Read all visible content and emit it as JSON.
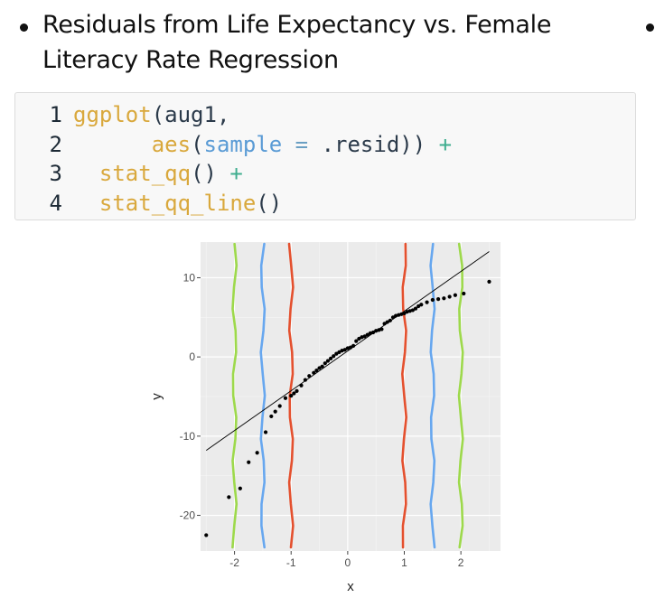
{
  "bullet": {
    "text": "Residuals from Life Expectancy vs. Female Literacy Rate Regression"
  },
  "code": {
    "lines": [
      {
        "num": "1",
        "parts": [
          [
            "fn",
            "ggplot"
          ],
          [
            "punct",
            "("
          ],
          [
            "var",
            "aug1"
          ],
          [
            "punct",
            ","
          ]
        ]
      },
      {
        "num": "2",
        "parts": [
          [
            "punct",
            "      "
          ],
          [
            "fn",
            "aes"
          ],
          [
            "punct",
            "("
          ],
          [
            "arg",
            "sample"
          ],
          [
            "op",
            " = "
          ],
          [
            "var",
            ".resid"
          ],
          [
            "punct",
            "))"
          ],
          [
            "plus",
            " +"
          ]
        ]
      },
      {
        "num": "3",
        "parts": [
          [
            "punct",
            "  "
          ],
          [
            "fn",
            "stat_qq"
          ],
          [
            "punct",
            "()"
          ],
          [
            "plus",
            " +"
          ]
        ]
      },
      {
        "num": "4",
        "parts": [
          [
            "punct",
            "  "
          ],
          [
            "fn",
            "stat_qq_line"
          ],
          [
            "punct",
            "()"
          ]
        ]
      }
    ]
  },
  "chart_data": {
    "type": "scatter",
    "xlabel": "x",
    "ylabel": "y",
    "xlim": [
      -2.6,
      2.7
    ],
    "ylim": [
      -24.5,
      14.5
    ],
    "xticks": [
      -2,
      -1,
      0,
      1,
      2
    ],
    "yticks": [
      -20,
      -10,
      0,
      10
    ],
    "grid": true,
    "points": [
      [
        -2.5,
        -22.5
      ],
      [
        -2.1,
        -17.7
      ],
      [
        -1.9,
        -16.6
      ],
      [
        -1.75,
        -13.3
      ],
      [
        -1.6,
        -12.1
      ],
      [
        -1.45,
        -9.5
      ],
      [
        -1.35,
        -7.5
      ],
      [
        -1.28,
        -6.9
      ],
      [
        -1.2,
        -6.2
      ],
      [
        -1.1,
        -5.2
      ],
      [
        -1.0,
        -4.9
      ],
      [
        -0.95,
        -4.6
      ],
      [
        -0.9,
        -4.3
      ],
      [
        -0.82,
        -3.6
      ],
      [
        -0.75,
        -2.9
      ],
      [
        -0.68,
        -2.4
      ],
      [
        -0.6,
        -2.0
      ],
      [
        -0.55,
        -1.7
      ],
      [
        -0.5,
        -1.4
      ],
      [
        -0.45,
        -1.2
      ],
      [
        -0.4,
        -0.8
      ],
      [
        -0.35,
        -0.5
      ],
      [
        -0.3,
        -0.2
      ],
      [
        -0.25,
        0.1
      ],
      [
        -0.2,
        0.4
      ],
      [
        -0.15,
        0.6
      ],
      [
        -0.1,
        0.8
      ],
      [
        -0.05,
        0.9
      ],
      [
        0.0,
        1.1
      ],
      [
        0.05,
        1.2
      ],
      [
        0.1,
        1.4
      ],
      [
        0.15,
        2.0
      ],
      [
        0.2,
        2.3
      ],
      [
        0.25,
        2.5
      ],
      [
        0.3,
        2.6
      ],
      [
        0.35,
        2.8
      ],
      [
        0.4,
        3.0
      ],
      [
        0.45,
        3.1
      ],
      [
        0.5,
        3.3
      ],
      [
        0.55,
        3.4
      ],
      [
        0.6,
        3.5
      ],
      [
        0.65,
        4.2
      ],
      [
        0.7,
        4.4
      ],
      [
        0.75,
        4.6
      ],
      [
        0.8,
        5.0
      ],
      [
        0.85,
        5.2
      ],
      [
        0.9,
        5.3
      ],
      [
        0.95,
        5.4
      ],
      [
        1.0,
        5.5
      ],
      [
        1.05,
        5.7
      ],
      [
        1.1,
        5.8
      ],
      [
        1.15,
        5.9
      ],
      [
        1.2,
        6.1
      ],
      [
        1.25,
        6.4
      ],
      [
        1.3,
        6.6
      ],
      [
        1.4,
        6.9
      ],
      [
        1.5,
        7.2
      ],
      [
        1.6,
        7.3
      ],
      [
        1.7,
        7.4
      ],
      [
        1.8,
        7.6
      ],
      [
        1.9,
        7.8
      ],
      [
        2.05,
        8.0
      ],
      [
        2.5,
        9.5
      ]
    ],
    "qq_line": [
      [
        -2.5,
        -11.8
      ],
      [
        2.5,
        13.3
      ]
    ],
    "overlay_lines": [
      {
        "x": -2.0,
        "color": "#9dd94b"
      },
      {
        "x": -1.5,
        "color": "#67a7ef"
      },
      {
        "x": -1.0,
        "color": "#e4502e"
      },
      {
        "x": 1.0,
        "color": "#e4502e"
      },
      {
        "x": 1.5,
        "color": "#67a7ef"
      },
      {
        "x": 2.0,
        "color": "#9dd94b"
      }
    ]
  }
}
